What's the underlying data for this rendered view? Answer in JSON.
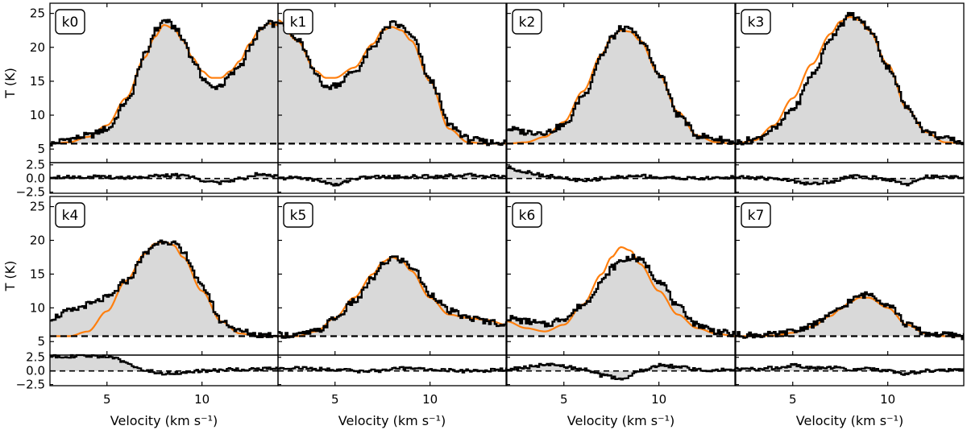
{
  "figure": {
    "type": "spectra-grid",
    "main_ylabel": "T (K)",
    "xlabel": "Velocity (km s⁻¹)",
    "xlim": [
      2,
      14
    ],
    "main_ylim": [
      3,
      26.5
    ],
    "resid_ylim": [
      -2.7,
      2.9
    ],
    "main_yticks": [
      5,
      10,
      15,
      20,
      25
    ],
    "resid_yticks": [
      2.5,
      0.0,
      -2.5
    ],
    "resid_ytick_labels": [
      "2.5",
      "0.0",
      "−2.5"
    ],
    "xticks": [
      5,
      10
    ],
    "baseline": 5.8,
    "colors": {
      "observed": "#000000",
      "model": "#ff7f0e",
      "fill": "#d9d9d9",
      "baseline": "#000000"
    }
  },
  "chart_data": [
    {
      "type": "line",
      "panel": "k0",
      "series": [
        {
          "name": "observed",
          "x": [
            2,
            3,
            4,
            5,
            6,
            7,
            7.5,
            8,
            8.5,
            9,
            9.5,
            10,
            10.5,
            11,
            11.5,
            12,
            12.5,
            13,
            13.5,
            14
          ],
          "values": [
            5.8,
            6.5,
            7,
            8,
            12,
            19,
            22.5,
            24,
            23,
            21,
            18,
            15.5,
            14,
            14.5,
            16,
            17.5,
            20,
            22.5,
            23.5,
            23.3
          ]
        },
        {
          "name": "model",
          "x": [
            2,
            3,
            4,
            5,
            6,
            7,
            7.5,
            8,
            8.5,
            9,
            9.5,
            10,
            10.5,
            11,
            11.5,
            12,
            12.5,
            13,
            13.5,
            14
          ],
          "values": [
            5.8,
            6,
            6.8,
            8.5,
            12.5,
            18.5,
            21.5,
            23.3,
            22.8,
            21,
            18.5,
            16.5,
            15.5,
            15.5,
            16.5,
            18,
            20.5,
            22.5,
            23.5,
            23.3
          ]
        }
      ],
      "residual": {
        "x": [
          2,
          4,
          6,
          8,
          9,
          10,
          11,
          12,
          13,
          14
        ],
        "values": [
          0.3,
          0.3,
          0.2,
          0.5,
          0.6,
          -0.3,
          -0.8,
          0,
          0.9,
          0.5
        ]
      }
    },
    {
      "type": "line",
      "panel": "k1",
      "series": [
        {
          "name": "observed",
          "x": [
            2,
            3,
            4,
            4.5,
            5,
            6,
            7,
            7.5,
            8,
            8.5,
            9,
            10,
            11,
            12,
            13,
            14
          ],
          "values": [
            24,
            21,
            16,
            14,
            14.5,
            16.5,
            20,
            22.5,
            23.5,
            23,
            21.5,
            15,
            8.5,
            6.5,
            6,
            6
          ]
        },
        {
          "name": "model",
          "x": [
            2,
            3,
            4,
            4.5,
            5,
            6,
            7,
            7.5,
            8,
            8.5,
            9,
            10,
            11,
            12,
            13,
            14
          ],
          "values": [
            24,
            21,
            16.5,
            15.5,
            15.5,
            17,
            20.5,
            22.5,
            23,
            22.5,
            21,
            15,
            8,
            6,
            5.8,
            5.8
          ]
        }
      ],
      "residual": {
        "x": [
          2,
          3,
          4,
          5,
          6,
          7,
          8,
          10,
          12,
          14
        ],
        "values": [
          0,
          0.2,
          -0.3,
          -1.2,
          0,
          0.3,
          0.3,
          0.4,
          0.6,
          0.3
        ]
      }
    },
    {
      "type": "line",
      "panel": "k2",
      "series": [
        {
          "name": "observed",
          "x": [
            2,
            3,
            4,
            5,
            6,
            7,
            7.5,
            8,
            8.5,
            9,
            10,
            11,
            12,
            13,
            14
          ],
          "values": [
            8,
            7.5,
            7.5,
            8.5,
            13,
            19,
            21.5,
            22.8,
            22.5,
            21,
            16,
            10,
            7,
            6.5,
            6
          ]
        },
        {
          "name": "model",
          "x": [
            2,
            3,
            4,
            5,
            6,
            7,
            7.5,
            8,
            8.5,
            9,
            10,
            11,
            12,
            13,
            14
          ],
          "values": [
            5.8,
            6,
            6.8,
            9,
            13.5,
            19,
            21.5,
            22.5,
            22.3,
            21,
            16,
            10.5,
            7,
            6,
            5.8
          ]
        }
      ],
      "residual": {
        "x": [
          2,
          3,
          4,
          5,
          6,
          7,
          8,
          9,
          10,
          12,
          14
        ],
        "values": [
          2,
          1.2,
          0.5,
          0,
          -0.5,
          0,
          0.3,
          0.5,
          0.2,
          0,
          0.2
        ]
      }
    },
    {
      "type": "line",
      "panel": "k3",
      "series": [
        {
          "name": "observed",
          "x": [
            2,
            3,
            4,
            5,
            6,
            7,
            7.5,
            8,
            8.5,
            9,
            10,
            11,
            12,
            13,
            14
          ],
          "values": [
            6,
            6.5,
            8,
            11,
            16,
            21.5,
            23.5,
            24.8,
            24,
            22.5,
            17,
            11,
            7.5,
            6.5,
            6
          ]
        },
        {
          "name": "model",
          "x": [
            2,
            3,
            4,
            5,
            6,
            7,
            7.5,
            8,
            8.5,
            9,
            10,
            11,
            12,
            13,
            14
          ],
          "values": [
            5.8,
            6.3,
            8.5,
            12.5,
            17.5,
            22,
            23.8,
            24.5,
            24,
            22.5,
            17.5,
            11,
            7.5,
            6,
            5.8
          ]
        }
      ],
      "residual": {
        "x": [
          2,
          4,
          5,
          6,
          7,
          8,
          9,
          10,
          11,
          12,
          14
        ],
        "values": [
          0.2,
          0,
          -0.5,
          -1,
          -0.5,
          0.4,
          0.2,
          -0.2,
          -1,
          0.3,
          0.3
        ]
      }
    },
    {
      "type": "line",
      "panel": "k4",
      "series": [
        {
          "name": "observed",
          "x": [
            2,
            3,
            4,
            5,
            6,
            7,
            7.5,
            8,
            8.5,
            9,
            10,
            11,
            12,
            13,
            14
          ],
          "values": [
            8.5,
            9.5,
            10.5,
            11.5,
            14,
            18,
            19.5,
            20,
            19.5,
            18,
            13,
            8,
            6.5,
            6,
            6
          ]
        },
        {
          "name": "model",
          "x": [
            2,
            3,
            4,
            5,
            6,
            7,
            7.5,
            8,
            8.5,
            9,
            10,
            11,
            12,
            13,
            14
          ],
          "values": [
            5.8,
            5.8,
            6.5,
            9.5,
            14,
            18,
            19.5,
            19.8,
            19.3,
            17.5,
            12.5,
            8,
            6.2,
            5.8,
            5.8
          ]
        }
      ],
      "residual": {
        "x": [
          2,
          3,
          4,
          5,
          6,
          7,
          8,
          9,
          10,
          12,
          14
        ],
        "values": [
          2.7,
          2.7,
          2.7,
          2.7,
          1.5,
          0,
          -0.5,
          -0.3,
          0,
          0.3,
          0.4
        ]
      }
    },
    {
      "type": "line",
      "panel": "k5",
      "series": [
        {
          "name": "observed",
          "x": [
            2,
            3,
            4,
            5,
            6,
            7,
            7.5,
            8,
            8.5,
            9,
            10,
            11,
            12,
            13,
            14
          ],
          "values": [
            6,
            6,
            6.5,
            8.5,
            11,
            14.5,
            16.5,
            17.5,
            17,
            16,
            12,
            9.5,
            8.5,
            8,
            7.5
          ]
        },
        {
          "name": "model",
          "x": [
            2,
            3,
            4,
            5,
            6,
            7,
            7.5,
            8,
            8.5,
            9,
            10,
            11,
            12,
            13,
            14
          ],
          "values": [
            5.8,
            5.8,
            6.5,
            8.5,
            11.5,
            15,
            16.8,
            17.5,
            17,
            15.5,
            11.5,
            9,
            8.5,
            8.2,
            7.5
          ]
        }
      ],
      "residual": {
        "x": [
          2,
          3,
          4,
          5,
          6,
          7,
          8,
          9,
          10,
          12,
          14
        ],
        "values": [
          0.5,
          0.6,
          0.3,
          0.3,
          0,
          0,
          0.3,
          0.6,
          0.2,
          0,
          0.2
        ]
      }
    },
    {
      "type": "line",
      "panel": "k6",
      "series": [
        {
          "name": "observed",
          "x": [
            2,
            3,
            4,
            5,
            6,
            7,
            7.5,
            8,
            8.5,
            9,
            10,
            11,
            12,
            13,
            14
          ],
          "values": [
            8.5,
            8,
            7.5,
            8.5,
            10.5,
            14,
            16,
            17,
            17.5,
            17,
            14,
            10,
            7.5,
            6.5,
            6
          ]
        },
        {
          "name": "model",
          "x": [
            2,
            3,
            4,
            5,
            6,
            7,
            7.5,
            8,
            8.5,
            9,
            10,
            11,
            12,
            13,
            14
          ],
          "values": [
            8,
            7,
            6.5,
            7.5,
            10.5,
            15,
            17.5,
            19,
            18.5,
            16.5,
            12.5,
            9,
            7,
            6.2,
            5.8
          ]
        }
      ],
      "residual": {
        "x": [
          2,
          3,
          4,
          5,
          6,
          7,
          8,
          9,
          10,
          11,
          12,
          14
        ],
        "values": [
          0.3,
          0.7,
          1.1,
          0.8,
          0.2,
          -0.8,
          -1.5,
          0,
          1,
          0.8,
          0.2,
          0.2
        ]
      }
    },
    {
      "type": "line",
      "panel": "k7",
      "series": [
        {
          "name": "observed",
          "x": [
            2,
            3,
            4,
            5,
            6,
            7,
            7.5,
            8,
            8.5,
            9,
            10,
            11,
            12,
            13,
            14
          ],
          "values": [
            6,
            6,
            6,
            6.5,
            7.5,
            9,
            10,
            11,
            11.8,
            12,
            10.5,
            7.5,
            6.2,
            6,
            5.8
          ]
        },
        {
          "name": "model",
          "x": [
            2,
            3,
            4,
            5,
            6,
            7,
            7.5,
            8,
            8.5,
            9,
            10,
            11,
            12,
            13,
            14
          ],
          "values": [
            5.8,
            5.8,
            5.9,
            6.3,
            7.2,
            8.8,
            9.8,
            10.8,
            11.5,
            11.5,
            10,
            7.5,
            6.2,
            5.8,
            5.8
          ]
        }
      ],
      "residual": {
        "x": [
          2,
          4,
          5,
          6,
          7,
          8,
          9,
          10,
          11,
          12,
          14
        ],
        "values": [
          0.3,
          0.5,
          1,
          0.5,
          0.6,
          0.3,
          0.4,
          0,
          -0.5,
          0,
          0.2
        ]
      }
    }
  ]
}
